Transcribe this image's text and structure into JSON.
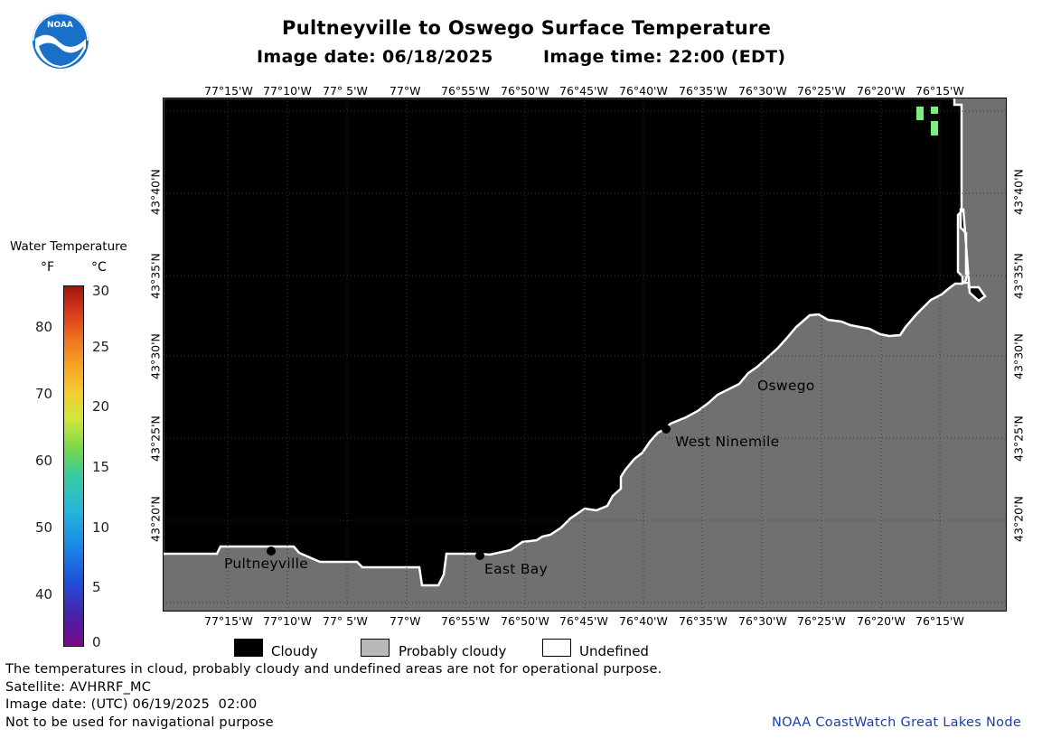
{
  "header": {
    "title": "Pultneyville to Oswego Surface Temperature",
    "image_date_label": "Image date: 06/18/2025",
    "image_time_label": "Image time: 22:00 (EDT)"
  },
  "logo": {
    "text": "NOAA",
    "color": "#1a6fc6"
  },
  "map": {
    "lon_labels": [
      "77°15'W",
      "77°10'W",
      "77° 5'W",
      "77°W",
      "76°55'W",
      "76°50'W",
      "76°45'W",
      "76°40'W",
      "76°35'W",
      "76°30'W",
      "76°25'W",
      "76°20'W",
      "76°15'W"
    ],
    "lat_labels": [
      "43°40'N",
      "43°35'N",
      "43°30'N",
      "43°25'N",
      "43°20'N"
    ],
    "places": {
      "pultneyville": "Pultneyville",
      "east_bay": "East Bay",
      "west_ninemile": "West Ninemile",
      "oswego": "Oswego"
    },
    "colors": {
      "cloudy": "#000000",
      "land": "#707070",
      "undefined": "#ffffff",
      "warm_pixel": "#7dee7d"
    }
  },
  "scale": {
    "title": "Water Temperature",
    "unit_f": "°F",
    "unit_c": "°C",
    "f_ticks": [
      "80",
      "70",
      "60",
      "50",
      "40"
    ],
    "c_ticks": [
      "30",
      "25",
      "20",
      "15",
      "10",
      "5",
      "0"
    ]
  },
  "legend": {
    "cloudy": "Cloudy",
    "probably_cloudy": "Probably cloudy",
    "undefined": "Undefined"
  },
  "footer": {
    "disclaimer": "The temperatures in cloud, probably cloudy and undefined areas are not for operational purpose.",
    "satellite": "Satellite: AVHRRF_MC",
    "utc_date": "Image date: (UTC) 06/19/2025  02:00",
    "nav_warning": "Not to be used for navigational purpose",
    "credit": "NOAA CoastWatch Great Lakes Node"
  }
}
